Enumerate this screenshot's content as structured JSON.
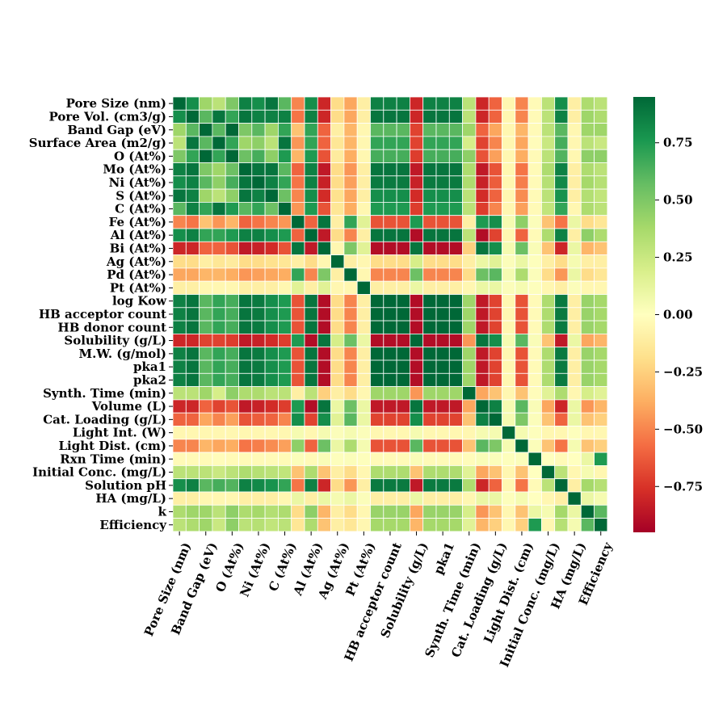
{
  "chart_data": {
    "type": "heatmap",
    "title": "",
    "colormap": "RdYlGn",
    "vmin": -0.95,
    "vmax": 0.95,
    "row_labels": [
      "Pore Size (nm)",
      "Pore Vol. (cm3/g)",
      "Band Gap (eV)",
      "Surface Area (m2/g)",
      "O (At%)",
      "Mo (At%)",
      "Ni (At%)",
      "S (At%)",
      "C (At%)",
      "Fe (At%)",
      "Al (At%)",
      "Bi (At%)",
      "Ag (At%)",
      "Pd (At%)",
      "Pt (At%)",
      "log Kow",
      "HB acceptor count",
      "HB donor count",
      "Solubility (g/L)",
      "M.W. (g/mol)",
      "pka1",
      "pka2",
      "Synth. Time (min)",
      "Volume (L)",
      "Cat. Loading (g/L)",
      "Light Int. (W)",
      "Light Dist. (cm)",
      "Rxn Time (min)",
      "Initial Conc. (mg/L)",
      "Solution pH",
      "HA (mg/L)",
      "k",
      "Efficiency"
    ],
    "x_tick_labels": [
      "Pore Size (nm)",
      "Band Gap (eV)",
      "O (At%)",
      "Ni (At%)",
      "C (At%)",
      "Al (At%)",
      "Ag (At%)",
      "Pt (At%)",
      "HB acceptor count",
      "Solubility (g/L)",
      "pka1",
      "Synth. Time (min)",
      "Cat. Loading (g/L)",
      "Light Dist. (cm)",
      "Initial Conc. (mg/L)",
      "HA (mg/L)",
      "Efficiency"
    ],
    "x_tick_indices": [
      0,
      2,
      4,
      6,
      8,
      10,
      12,
      14,
      16,
      18,
      20,
      22,
      24,
      26,
      28,
      30,
      32
    ],
    "colorbar_ticks": [
      -0.75,
      -0.5,
      -0.25,
      0.0,
      0.25,
      0.5,
      0.75
    ],
    "colorbar_tick_labels": [
      "−0.75",
      "−0.50",
      "−0.25",
      "0.00",
      "0.25",
      "0.50",
      "0.75"
    ],
    "matrix": [
      [
        1.0,
        0.8,
        0.4,
        0.3,
        0.5,
        0.85,
        0.8,
        0.9,
        0.6,
        -0.5,
        0.8,
        -0.8,
        -0.2,
        -0.4,
        -0.1,
        0.85,
        0.85,
        0.85,
        -0.8,
        0.85,
        0.85,
        0.85,
        0.3,
        -0.8,
        -0.6,
        -0.05,
        -0.5,
        -0.03,
        0.3,
        0.8,
        -0.1,
        0.35,
        0.3
      ],
      [
        0.8,
        1.0,
        0.6,
        0.9,
        0.7,
        0.9,
        0.85,
        0.85,
        0.85,
        -0.55,
        0.85,
        -0.8,
        -0.2,
        -0.4,
        -0.1,
        0.9,
        0.9,
        0.9,
        -0.8,
        0.9,
        0.9,
        0.9,
        0.3,
        -0.8,
        -0.6,
        -0.05,
        -0.5,
        -0.03,
        0.3,
        0.85,
        -0.1,
        0.4,
        0.35
      ],
      [
        0.4,
        0.6,
        1.0,
        0.6,
        0.95,
        0.5,
        0.6,
        0.4,
        0.7,
        -0.3,
        0.7,
        -0.6,
        -0.1,
        -0.35,
        -0.05,
        0.6,
        0.6,
        0.6,
        -0.7,
        0.6,
        0.6,
        0.6,
        0.4,
        -0.6,
        -0.4,
        -0.05,
        -0.35,
        -0.03,
        0.3,
        0.6,
        -0.05,
        0.4,
        0.4
      ],
      [
        0.3,
        0.9,
        0.6,
        1.0,
        0.7,
        0.4,
        0.45,
        0.3,
        0.9,
        -0.45,
        0.7,
        -0.6,
        -0.15,
        -0.35,
        -0.05,
        0.7,
        0.7,
        0.7,
        -0.7,
        0.7,
        0.7,
        0.7,
        0.2,
        -0.7,
        -0.5,
        -0.05,
        -0.4,
        -0.02,
        0.25,
        0.65,
        -0.05,
        0.3,
        0.25
      ],
      [
        0.5,
        0.7,
        0.95,
        0.7,
        1.0,
        0.55,
        0.65,
        0.45,
        0.75,
        -0.35,
        0.75,
        -0.65,
        -0.12,
        -0.38,
        -0.05,
        0.65,
        0.65,
        0.65,
        -0.72,
        0.65,
        0.65,
        0.65,
        0.45,
        -0.65,
        -0.42,
        -0.05,
        -0.38,
        -0.03,
        0.3,
        0.62,
        -0.05,
        0.45,
        0.45
      ],
      [
        0.85,
        0.9,
        0.5,
        0.4,
        0.55,
        1.0,
        0.9,
        0.9,
        0.6,
        -0.6,
        0.85,
        -0.85,
        -0.2,
        -0.45,
        -0.1,
        0.9,
        0.9,
        0.9,
        -0.85,
        0.9,
        0.9,
        0.9,
        0.35,
        -0.85,
        -0.65,
        -0.05,
        -0.55,
        -0.03,
        0.35,
        0.85,
        -0.1,
        0.35,
        0.3
      ],
      [
        0.8,
        0.85,
        0.6,
        0.45,
        0.65,
        0.9,
        1.0,
        0.85,
        0.7,
        -0.55,
        0.85,
        -0.82,
        -0.2,
        -0.42,
        -0.1,
        0.88,
        0.88,
        0.88,
        -0.82,
        0.88,
        0.88,
        0.88,
        0.35,
        -0.82,
        -0.62,
        -0.05,
        -0.52,
        -0.03,
        0.32,
        0.82,
        -0.1,
        0.38,
        0.32
      ],
      [
        0.9,
        0.85,
        0.4,
        0.3,
        0.45,
        0.9,
        0.85,
        1.0,
        0.55,
        -0.5,
        0.8,
        -0.78,
        -0.18,
        -0.4,
        -0.1,
        0.8,
        0.8,
        0.8,
        -0.78,
        0.8,
        0.8,
        0.8,
        0.3,
        -0.78,
        -0.6,
        -0.05,
        -0.48,
        -0.03,
        0.3,
        0.78,
        -0.1,
        0.33,
        0.28
      ],
      [
        0.6,
        0.85,
        0.7,
        0.9,
        0.75,
        0.6,
        0.7,
        0.55,
        1.0,
        -0.45,
        0.75,
        -0.65,
        -0.15,
        -0.38,
        -0.05,
        0.75,
        0.75,
        0.75,
        -0.72,
        0.75,
        0.75,
        0.75,
        0.3,
        -0.72,
        -0.5,
        -0.05,
        -0.42,
        -0.03,
        0.28,
        0.7,
        -0.05,
        0.35,
        0.3
      ],
      [
        -0.5,
        -0.55,
        -0.3,
        -0.45,
        -0.35,
        -0.6,
        -0.55,
        -0.5,
        -0.45,
        1.0,
        -0.6,
        0.9,
        -0.1,
        0.7,
        0.15,
        -0.65,
        -0.65,
        -0.65,
        0.75,
        -0.65,
        -0.65,
        -0.65,
        -0.1,
        0.75,
        0.8,
        0.05,
        0.45,
        0.02,
        -0.3,
        -0.55,
        0.1,
        -0.2,
        -0.15
      ],
      [
        0.8,
        0.85,
        0.7,
        0.7,
        0.75,
        0.85,
        0.85,
        0.8,
        0.75,
        -0.6,
        1.0,
        -0.85,
        -0.2,
        -0.5,
        -0.1,
        0.9,
        0.9,
        0.9,
        -0.9,
        0.9,
        0.9,
        0.9,
        0.3,
        -0.9,
        -0.7,
        -0.05,
        -0.6,
        -0.03,
        0.35,
        0.85,
        -0.1,
        0.45,
        0.35
      ],
      [
        -0.8,
        -0.8,
        -0.6,
        -0.6,
        -0.65,
        -0.85,
        -0.82,
        -0.78,
        -0.65,
        0.9,
        -0.85,
        1.0,
        -0.05,
        0.5,
        0.15,
        -0.9,
        -0.9,
        -0.9,
        0.9,
        -0.9,
        -0.9,
        -0.9,
        -0.25,
        0.9,
        0.8,
        0.05,
        0.55,
        0.03,
        -0.3,
        -0.8,
        0.1,
        -0.35,
        -0.3
      ],
      [
        -0.2,
        -0.2,
        -0.1,
        -0.15,
        -0.12,
        -0.2,
        -0.2,
        -0.18,
        -0.15,
        -0.1,
        -0.2,
        -0.05,
        1.0,
        -0.1,
        -0.05,
        -0.2,
        -0.2,
        -0.2,
        0.2,
        -0.2,
        -0.2,
        -0.2,
        -0.1,
        0.1,
        0.15,
        0.02,
        0.1,
        0.01,
        -0.1,
        -0.2,
        0.05,
        -0.1,
        -0.1
      ],
      [
        -0.4,
        -0.4,
        -0.35,
        -0.35,
        -0.38,
        -0.45,
        -0.42,
        -0.4,
        -0.38,
        0.7,
        -0.5,
        0.5,
        -0.1,
        1.0,
        -0.05,
        -0.5,
        -0.5,
        -0.5,
        0.55,
        -0.5,
        -0.5,
        -0.5,
        -0.2,
        0.55,
        0.6,
        0.05,
        0.35,
        0.02,
        -0.2,
        -0.45,
        0.1,
        -0.2,
        -0.15
      ],
      [
        -0.1,
        -0.1,
        -0.05,
        -0.05,
        -0.05,
        -0.1,
        -0.1,
        -0.1,
        -0.05,
        0.15,
        -0.1,
        0.15,
        -0.05,
        -0.05,
        1.0,
        -0.1,
        -0.1,
        -0.1,
        0.1,
        -0.1,
        -0.1,
        -0.1,
        -0.05,
        0.1,
        0.1,
        0.02,
        0.05,
        0.01,
        -0.05,
        -0.1,
        0.02,
        -0.05,
        -0.05
      ],
      [
        0.85,
        0.9,
        0.6,
        0.7,
        0.65,
        0.9,
        0.88,
        0.8,
        0.75,
        -0.65,
        0.9,
        -0.9,
        -0.2,
        -0.5,
        -0.1,
        1.0,
        0.95,
        0.95,
        -0.9,
        0.95,
        0.95,
        0.95,
        0.4,
        -0.85,
        -0.7,
        -0.05,
        -0.65,
        -0.03,
        0.35,
        0.88,
        -0.1,
        0.42,
        0.38
      ],
      [
        0.85,
        0.9,
        0.6,
        0.7,
        0.65,
        0.9,
        0.88,
        0.8,
        0.75,
        -0.65,
        0.9,
        -0.9,
        -0.2,
        -0.5,
        -0.1,
        0.95,
        1.0,
        0.95,
        -0.9,
        0.95,
        0.95,
        0.95,
        0.4,
        -0.85,
        -0.7,
        -0.05,
        -0.65,
        -0.03,
        0.35,
        0.88,
        -0.1,
        0.42,
        0.38
      ],
      [
        0.85,
        0.9,
        0.6,
        0.7,
        0.65,
        0.9,
        0.88,
        0.8,
        0.75,
        -0.65,
        0.9,
        -0.9,
        -0.2,
        -0.5,
        -0.1,
        0.95,
        0.95,
        1.0,
        -0.9,
        0.95,
        0.95,
        0.95,
        0.4,
        -0.85,
        -0.7,
        -0.05,
        -0.65,
        -0.03,
        0.35,
        0.88,
        -0.1,
        0.42,
        0.38
      ],
      [
        -0.8,
        -0.8,
        -0.7,
        -0.7,
        -0.72,
        -0.85,
        -0.82,
        -0.78,
        -0.72,
        0.75,
        -0.9,
        0.9,
        0.2,
        0.55,
        0.1,
        -0.9,
        -0.9,
        -0.9,
        1.0,
        -0.9,
        -0.9,
        -0.9,
        -0.45,
        0.9,
        0.8,
        0.05,
        0.6,
        0.03,
        -0.3,
        -0.85,
        0.1,
        -0.4,
        -0.35
      ],
      [
        0.85,
        0.9,
        0.6,
        0.7,
        0.65,
        0.9,
        0.88,
        0.8,
        0.75,
        -0.65,
        0.9,
        -0.9,
        -0.2,
        -0.5,
        -0.1,
        0.95,
        0.95,
        0.95,
        -0.9,
        1.0,
        0.95,
        0.95,
        0.4,
        -0.85,
        -0.7,
        -0.05,
        -0.65,
        -0.03,
        0.35,
        0.88,
        -0.1,
        0.42,
        0.38
      ],
      [
        0.85,
        0.9,
        0.6,
        0.7,
        0.65,
        0.9,
        0.88,
        0.8,
        0.75,
        -0.65,
        0.9,
        -0.9,
        -0.2,
        -0.5,
        -0.1,
        0.95,
        0.95,
        0.95,
        -0.9,
        0.95,
        1.0,
        0.95,
        0.4,
        -0.85,
        -0.7,
        -0.05,
        -0.65,
        -0.03,
        0.35,
        0.88,
        -0.1,
        0.42,
        0.38
      ],
      [
        0.85,
        0.9,
        0.6,
        0.7,
        0.65,
        0.9,
        0.88,
        0.8,
        0.75,
        -0.65,
        0.9,
        -0.9,
        -0.2,
        -0.5,
        -0.1,
        0.95,
        0.95,
        0.95,
        -0.9,
        0.95,
        0.95,
        1.0,
        0.4,
        -0.85,
        -0.7,
        -0.05,
        -0.65,
        -0.03,
        0.35,
        0.88,
        -0.1,
        0.42,
        0.38
      ],
      [
        0.3,
        0.3,
        0.4,
        0.2,
        0.45,
        0.35,
        0.35,
        0.3,
        0.3,
        -0.1,
        0.3,
        -0.25,
        -0.1,
        -0.2,
        -0.05,
        0.4,
        0.4,
        0.4,
        -0.45,
        0.4,
        0.4,
        0.4,
        1.0,
        -0.4,
        -0.3,
        -0.05,
        -0.3,
        -0.02,
        0.15,
        0.35,
        -0.05,
        0.2,
        0.15
      ],
      [
        -0.8,
        -0.8,
        -0.6,
        -0.7,
        -0.65,
        -0.85,
        -0.82,
        -0.78,
        -0.72,
        0.75,
        -0.9,
        0.9,
        0.1,
        0.55,
        0.1,
        -0.85,
        -0.85,
        -0.85,
        0.9,
        -0.85,
        -0.85,
        -0.85,
        -0.4,
        1.0,
        0.85,
        0.05,
        0.6,
        0.03,
        -0.4,
        -0.8,
        0.1,
        -0.45,
        -0.35
      ],
      [
        -0.6,
        -0.6,
        -0.4,
        -0.5,
        -0.42,
        -0.65,
        -0.62,
        -0.6,
        -0.5,
        0.8,
        -0.7,
        0.8,
        0.15,
        0.6,
        0.1,
        -0.7,
        -0.7,
        -0.7,
        0.8,
        -0.7,
        -0.7,
        -0.7,
        -0.3,
        0.85,
        1.0,
        0.05,
        0.5,
        0.02,
        -0.3,
        -0.6,
        0.1,
        -0.3,
        -0.25
      ],
      [
        -0.05,
        -0.05,
        -0.05,
        -0.05,
        -0.05,
        -0.05,
        -0.05,
        -0.05,
        -0.05,
        0.05,
        -0.05,
        0.05,
        0.02,
        0.05,
        0.02,
        -0.05,
        -0.05,
        -0.05,
        0.05,
        -0.05,
        -0.05,
        -0.05,
        -0.05,
        0.05,
        0.05,
        1.0,
        0.05,
        0.01,
        -0.05,
        -0.05,
        0.01,
        -0.05,
        -0.05
      ],
      [
        -0.5,
        -0.5,
        -0.35,
        -0.4,
        -0.38,
        -0.55,
        -0.52,
        -0.48,
        -0.42,
        0.45,
        -0.6,
        0.55,
        0.1,
        0.35,
        0.05,
        -0.65,
        -0.65,
        -0.65,
        0.6,
        -0.65,
        -0.65,
        -0.65,
        -0.3,
        0.6,
        0.5,
        0.05,
        1.0,
        0.02,
        -0.3,
        -0.55,
        0.05,
        -0.3,
        -0.25
      ],
      [
        -0.03,
        -0.03,
        -0.03,
        -0.02,
        -0.03,
        -0.03,
        -0.03,
        -0.03,
        -0.03,
        0.02,
        -0.03,
        0.03,
        0.01,
        0.02,
        0.01,
        -0.03,
        -0.03,
        -0.03,
        0.03,
        -0.03,
        -0.03,
        -0.03,
        -0.02,
        0.03,
        0.02,
        0.01,
        0.02,
        1.0,
        0.0,
        -0.03,
        0.0,
        0.1,
        0.75
      ],
      [
        0.3,
        0.3,
        0.3,
        0.25,
        0.3,
        0.35,
        0.32,
        0.3,
        0.28,
        -0.3,
        0.35,
        -0.3,
        -0.1,
        -0.2,
        -0.05,
        0.35,
        0.35,
        0.35,
        -0.3,
        0.35,
        0.35,
        0.35,
        0.15,
        -0.4,
        -0.3,
        -0.05,
        -0.3,
        0.0,
        1.0,
        0.3,
        -0.05,
        0.05,
        -0.05
      ],
      [
        0.8,
        0.85,
        0.6,
        0.65,
        0.62,
        0.85,
        0.82,
        0.78,
        0.7,
        -0.55,
        0.85,
        -0.8,
        -0.2,
        -0.45,
        -0.1,
        0.88,
        0.88,
        0.88,
        -0.85,
        0.88,
        0.88,
        0.88,
        0.35,
        -0.8,
        -0.6,
        -0.05,
        -0.55,
        -0.03,
        0.3,
        1.0,
        -0.1,
        0.38,
        0.32
      ],
      [
        -0.1,
        -0.1,
        -0.05,
        -0.05,
        -0.05,
        -0.1,
        -0.1,
        -0.1,
        -0.05,
        0.1,
        -0.1,
        0.1,
        0.05,
        0.1,
        0.02,
        -0.1,
        -0.1,
        -0.1,
        0.1,
        -0.1,
        -0.1,
        -0.1,
        -0.05,
        0.1,
        0.1,
        0.01,
        0.05,
        0.0,
        -0.05,
        -0.1,
        1.0,
        0.1,
        0.05
      ],
      [
        0.35,
        0.4,
        0.4,
        0.3,
        0.45,
        0.35,
        0.38,
        0.33,
        0.35,
        -0.2,
        0.45,
        -0.35,
        -0.1,
        -0.2,
        -0.05,
        0.42,
        0.42,
        0.42,
        -0.4,
        0.42,
        0.42,
        0.42,
        0.2,
        -0.45,
        -0.3,
        -0.05,
        -0.3,
        0.1,
        0.05,
        0.38,
        0.1,
        1.0,
        0.6
      ],
      [
        0.3,
        0.35,
        0.4,
        0.25,
        0.45,
        0.3,
        0.32,
        0.28,
        0.3,
        -0.15,
        0.35,
        -0.3,
        -0.1,
        -0.15,
        -0.05,
        0.38,
        0.38,
        0.38,
        -0.35,
        0.38,
        0.38,
        0.38,
        0.15,
        -0.35,
        -0.25,
        -0.05,
        -0.25,
        0.75,
        -0.05,
        0.32,
        0.05,
        0.6,
        1.0
      ]
    ]
  }
}
